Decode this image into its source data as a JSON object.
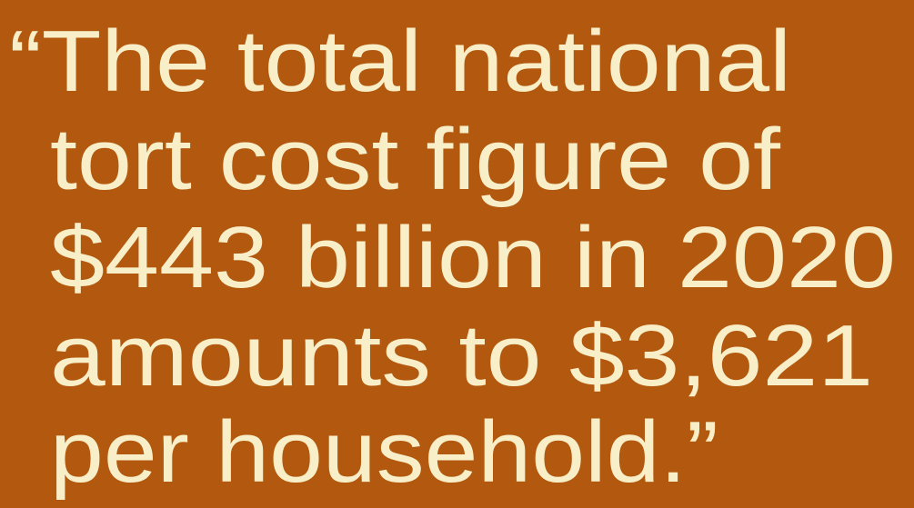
{
  "quote": {
    "lines": [
      "“The total national",
      "tort cost figure of",
      "$443 billion in 2020",
      "amounts to $3,621",
      "per household.”"
    ]
  }
}
